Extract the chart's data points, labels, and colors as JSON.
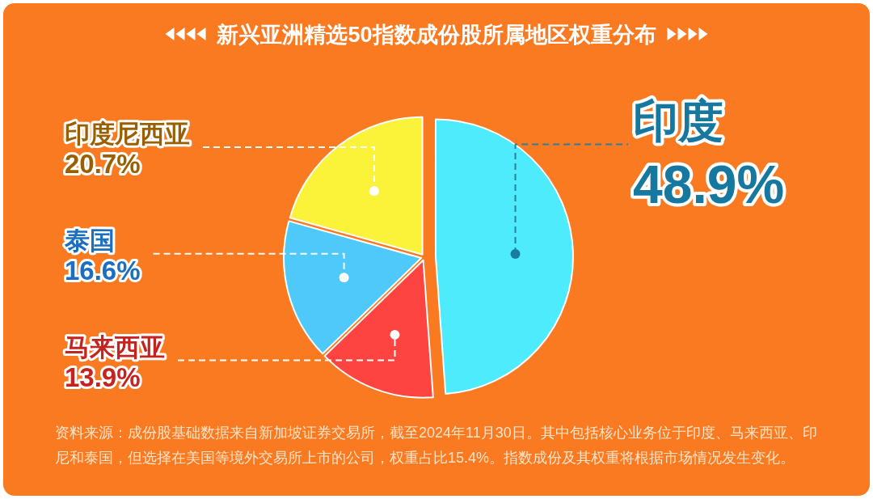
{
  "chart_data": {
    "type": "pie",
    "title": "新兴亚洲精选50指数成份股所属地区权重分布",
    "categories": [
      "印度",
      "马来西亚",
      "泰国",
      "印度尼西亚"
    ],
    "values": [
      48.9,
      13.9,
      16.6,
      20.7
    ],
    "colors": [
      "#4debfc",
      "#fd4440",
      "#4fc8fa",
      "#fbf23a"
    ],
    "value_labels": [
      "48.9%",
      "13.9%",
      "16.6%",
      "20.7%"
    ],
    "annotations": [
      "资料来源：成份股基础数据来自新加坡证券交易所，截至2024年11月30日。其中包括核心业务位于印度、马来西亚、印尼和泰国，但选择在美国等境外交易所上市的公司，权重占比15.4%。指数成份及其权重将根据市场情况发生变化。"
    ]
  }
}
